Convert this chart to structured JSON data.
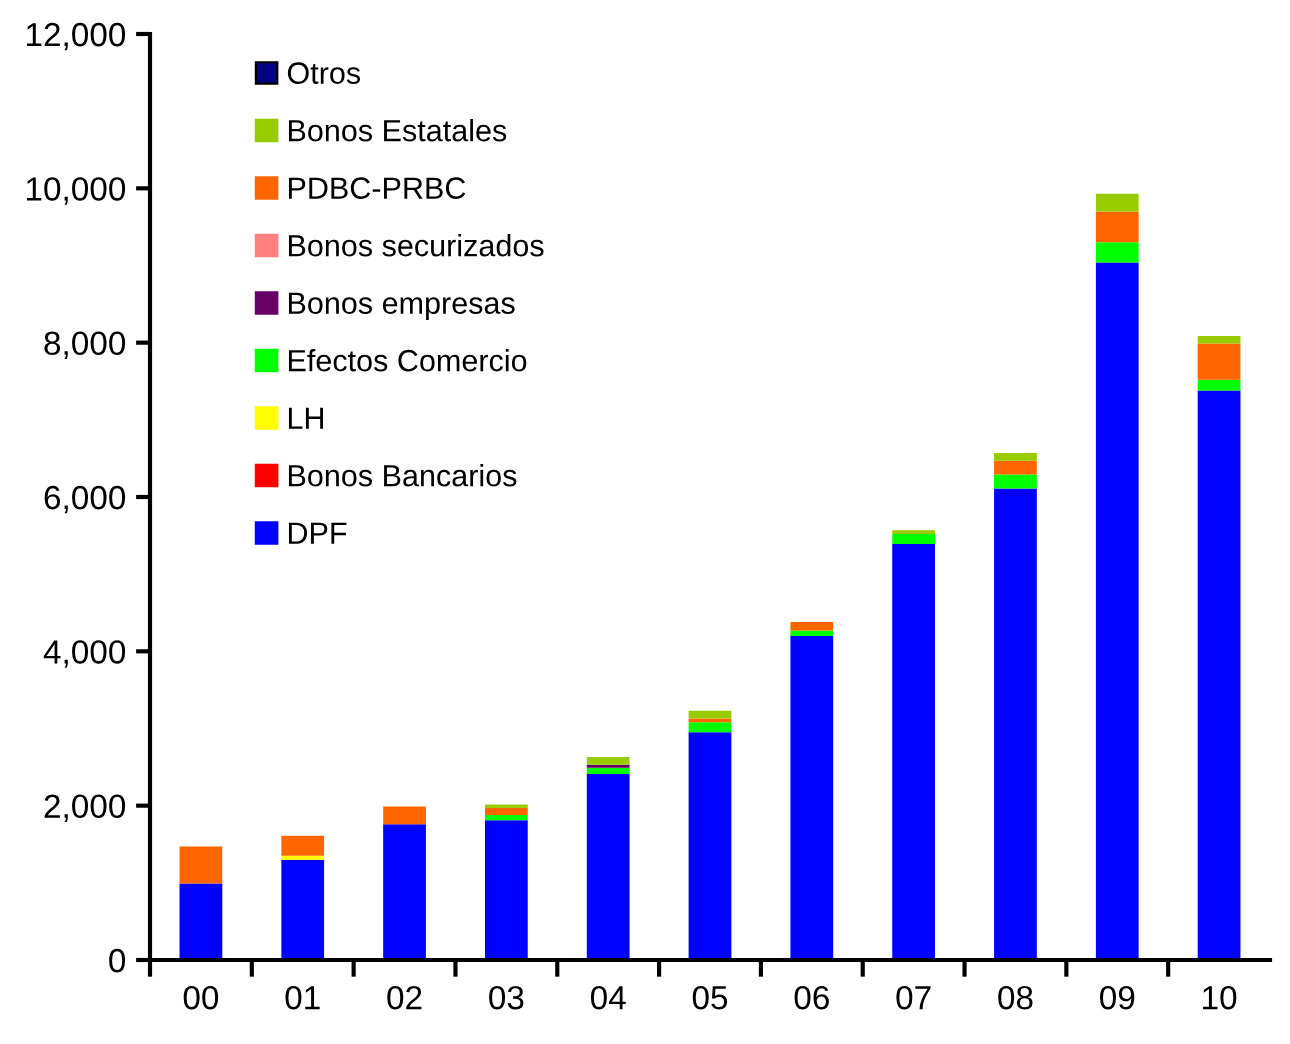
{
  "chart_data": {
    "type": "bar",
    "stacked": true,
    "categories": [
      "00",
      "01",
      "02",
      "03",
      "04",
      "05",
      "06",
      "07",
      "08",
      "09",
      "10"
    ],
    "series": [
      {
        "name": "DPF",
        "color": "#0000ff",
        "values": [
          990,
          1300,
          1760,
          1810,
          2410,
          2950,
          4200,
          5390,
          6110,
          9040,
          7380
        ]
      },
      {
        "name": "Bonos Bancarios",
        "color": "#ff0000",
        "values": [
          0,
          0,
          0,
          0,
          0,
          0,
          0,
          0,
          0,
          0,
          0
        ]
      },
      {
        "name": "LH",
        "color": "#ffff00",
        "values": [
          0,
          50,
          0,
          0,
          0,
          0,
          0,
          0,
          0,
          0,
          0
        ]
      },
      {
        "name": "Efectos Comercio",
        "color": "#00ff00",
        "values": [
          0,
          0,
          0,
          70,
          80,
          130,
          70,
          130,
          180,
          260,
          140
        ]
      },
      {
        "name": "Bonos empresas",
        "color": "#660066",
        "values": [
          0,
          0,
          0,
          0,
          40,
          0,
          0,
          0,
          0,
          0,
          0
        ]
      },
      {
        "name": "Bonos securizados",
        "color": "#ff8080",
        "values": [
          0,
          0,
          0,
          0,
          0,
          0,
          0,
          0,
          0,
          0,
          0
        ]
      },
      {
        "name": "PDBC-PRBC",
        "color": "#ff6600",
        "values": [
          480,
          260,
          230,
          90,
          0,
          50,
          110,
          0,
          180,
          400,
          470
        ]
      },
      {
        "name": "Bonos Estatales",
        "color": "#99cc00",
        "values": [
          0,
          0,
          0,
          45,
          100,
          100,
          0,
          50,
          100,
          230,
          95
        ]
      },
      {
        "name": "Otros",
        "color": "#000080",
        "values": [
          0,
          0,
          0,
          0,
          0,
          0,
          0,
          0,
          0,
          0,
          0
        ]
      }
    ],
    "ylim": [
      0,
      12000
    ],
    "yticks": [
      {
        "value": 0,
        "label": "0"
      },
      {
        "value": 2000,
        "label": "2,000"
      },
      {
        "value": 4000,
        "label": "4,000"
      },
      {
        "value": 6000,
        "label": "6,000"
      },
      {
        "value": 8000,
        "label": "8,000"
      },
      {
        "value": 10000,
        "label": "10,000"
      },
      {
        "value": 12000,
        "label": "12,000"
      }
    ],
    "legend": "top left",
    "grid": false
  }
}
